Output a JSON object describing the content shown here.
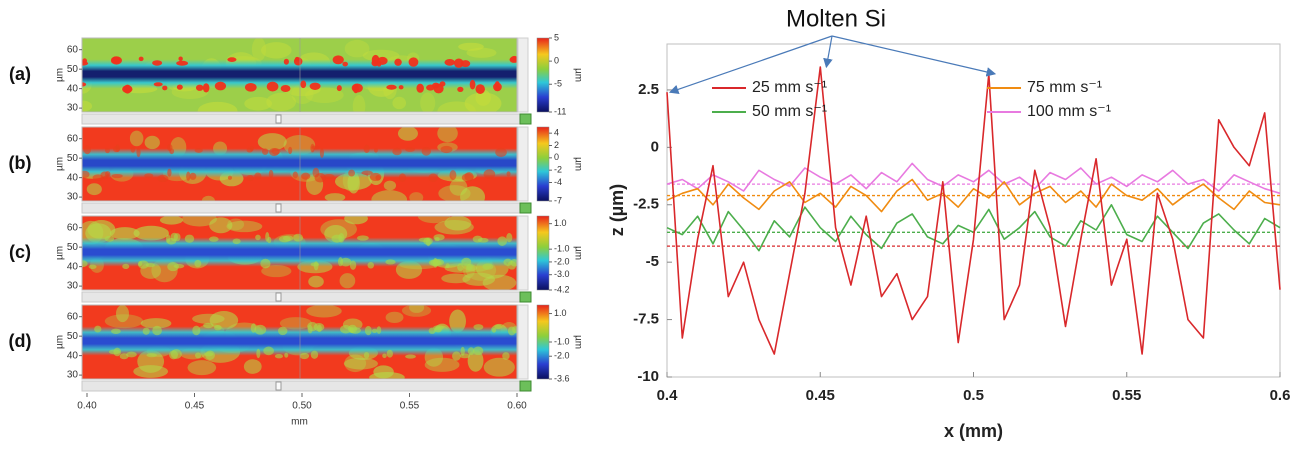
{
  "chart_data": [
    {
      "type": "heatmap",
      "label": "(a)",
      "ylabel": "µm",
      "ylim": [
        28,
        66
      ],
      "yticks": [
        30,
        40,
        50,
        60
      ],
      "background": "#9ccf4a",
      "band_color": "#14206e",
      "blob_color": "#f0301c",
      "colorbar": {
        "lim": [
          -11,
          5
        ],
        "ticks": [
          5,
          0,
          -5,
          -11
        ],
        "label": "µm"
      }
    },
    {
      "type": "heatmap",
      "label": "(b)",
      "ylabel": "µm",
      "ylim": [
        28,
        66
      ],
      "yticks": [
        30,
        40,
        50,
        60
      ],
      "background": "#f23a1e",
      "band_color": "#2848c8",
      "blob_color": "#e8401a",
      "colorbar": {
        "lim": [
          -7,
          5
        ],
        "ticks": [
          4,
          2,
          0,
          -2,
          -4,
          -7
        ],
        "label": "µm"
      }
    },
    {
      "type": "heatmap",
      "label": "(c)",
      "ylabel": "µm",
      "ylim": [
        28,
        66
      ],
      "yticks": [
        30,
        40,
        50,
        60
      ],
      "background": "#f23a1e",
      "band_color": "#2a4cd0",
      "blob_color": "#a8d84a",
      "colorbar": {
        "lim": [
          -4.2,
          1.6
        ],
        "ticks": [
          {
            "value": 1,
            "label": "1.0"
          },
          {
            "value": -1,
            "label": "-1.0"
          },
          {
            "value": -2,
            "label": "-2.0"
          },
          {
            "value": -3,
            "label": "-3.0"
          },
          -4.2
        ],
        "label": "µm"
      }
    },
    {
      "type": "heatmap",
      "label": "(d)",
      "ylabel": "µm",
      "xlabel": "mm",
      "ylim": [
        28,
        66
      ],
      "yticks": [
        30,
        40,
        50,
        60
      ],
      "background": "#f23a1e",
      "band_color": "#2a4cd0",
      "blob_color": "#a8d84a",
      "xlim": [
        0.4,
        0.6
      ],
      "xticks": [
        {
          "value": 0.4,
          "label": "0.40"
        },
        0.45,
        {
          "value": 0.5,
          "label": "0.50"
        },
        0.55,
        {
          "value": 0.6,
          "label": "0.60"
        }
      ],
      "colorbar": {
        "lim": [
          -3.6,
          1.6
        ],
        "ticks": [
          {
            "value": 1,
            "label": "1.0"
          },
          {
            "value": -1,
            "label": "-1.0"
          },
          {
            "value": -2,
            "label": "-2.0"
          },
          -3.6
        ],
        "label": "µm"
      }
    },
    {
      "type": "line",
      "xlabel": "x (mm)",
      "ylabel": "z (µm)",
      "x": [
        0.4,
        0.405,
        0.41,
        0.415,
        0.42,
        0.425,
        0.43,
        0.435,
        0.44,
        0.445,
        0.45,
        0.455,
        0.46,
        0.465,
        0.47,
        0.475,
        0.48,
        0.485,
        0.49,
        0.495,
        0.5,
        0.505,
        0.51,
        0.515,
        0.52,
        0.525,
        0.53,
        0.535,
        0.54,
        0.545,
        0.55,
        0.555,
        0.56,
        0.565,
        0.57,
        0.575,
        0.58,
        0.585,
        0.59,
        0.595,
        0.6
      ],
      "xlim": [
        0.4,
        0.6
      ],
      "xticks": [
        0.4,
        0.45,
        0.5,
        0.55,
        0.6
      ],
      "ylim": [
        -10,
        4.5
      ],
      "yticks": [
        -10,
        -7.5,
        -5,
        -2.5,
        0,
        2.5
      ],
      "series": [
        {
          "name": "25 mm s⁻¹",
          "color": "#d9282b",
          "mean": -4.3,
          "values": [
            2.4,
            -8.3,
            -4.0,
            -0.8,
            -6.5,
            -5.0,
            -7.5,
            -9.0,
            -5.5,
            -2.0,
            3.5,
            -3.5,
            -6.0,
            -3.0,
            -6.5,
            -5.5,
            -7.5,
            -6.5,
            -1.5,
            -8.5,
            -4.0,
            3.2,
            -7.5,
            -6.0,
            -1.0,
            -3.5,
            -7.8,
            -4.0,
            -0.5,
            -6.0,
            -4.0,
            -9.0,
            -2.0,
            -4.0,
            -7.5,
            -8.3,
            1.2,
            0.0,
            -0.8,
            1.5,
            -6.2
          ]
        },
        {
          "name": "50 mm s⁻¹",
          "color": "#4cae4c",
          "mean": -3.7,
          "values": [
            -3.5,
            -3.8,
            -3.0,
            -4.2,
            -2.8,
            -3.6,
            -4.5,
            -3.2,
            -3.9,
            -2.6,
            -3.5,
            -4.1,
            -3.0,
            -3.8,
            -4.4,
            -3.3,
            -2.9,
            -3.9,
            -4.2,
            -3.4,
            -3.7,
            -2.7,
            -4.0,
            -3.5,
            -2.8,
            -3.9,
            -4.3,
            -3.2,
            -3.6,
            -2.5,
            -3.8,
            -4.1,
            -3.0,
            -3.7,
            -4.4,
            -3.3,
            -2.9,
            -3.6,
            -4.2,
            -3.1,
            -3.5
          ]
        },
        {
          "name": "75 mm s⁻¹",
          "color": "#f08c12",
          "mean": -2.1,
          "values": [
            -2.3,
            -2.0,
            -1.8,
            -2.5,
            -1.6,
            -2.2,
            -2.7,
            -1.9,
            -1.5,
            -2.4,
            -2.0,
            -2.6,
            -1.7,
            -2.1,
            -2.8,
            -1.9,
            -1.4,
            -2.3,
            -2.0,
            -2.6,
            -1.8,
            -2.2,
            -1.5,
            -2.5,
            -2.0,
            -1.7,
            -2.4,
            -1.9,
            -2.6,
            -1.6,
            -2.1,
            -2.3,
            -1.8,
            -2.5,
            -2.0,
            -1.6,
            -2.2,
            -2.7,
            -1.9,
            -2.4,
            -2.5
          ]
        },
        {
          "name": "100 mm s⁻¹",
          "color": "#e87ae0",
          "mean": -1.6,
          "values": [
            -1.6,
            -1.4,
            -1.8,
            -1.2,
            -1.5,
            -1.9,
            -1.0,
            -1.4,
            -1.7,
            -0.9,
            -1.3,
            -1.6,
            -1.2,
            -1.8,
            -1.1,
            -1.5,
            -0.7,
            -1.4,
            -1.7,
            -1.2,
            -1.5,
            -1.0,
            -1.6,
            -1.3,
            -1.8,
            -1.1,
            -1.4,
            -0.9,
            -1.6,
            -1.3,
            -1.7,
            -1.2,
            -1.5,
            -1.0,
            -1.6,
            -1.4,
            -1.9,
            -1.2,
            -1.5,
            -1.8,
            -2.0
          ]
        }
      ],
      "annotation": {
        "text": "Molten Si",
        "targets": [
          [
            0.401,
            2.4
          ],
          [
            0.452,
            3.5
          ],
          [
            0.507,
            3.2
          ]
        ]
      }
    }
  ]
}
